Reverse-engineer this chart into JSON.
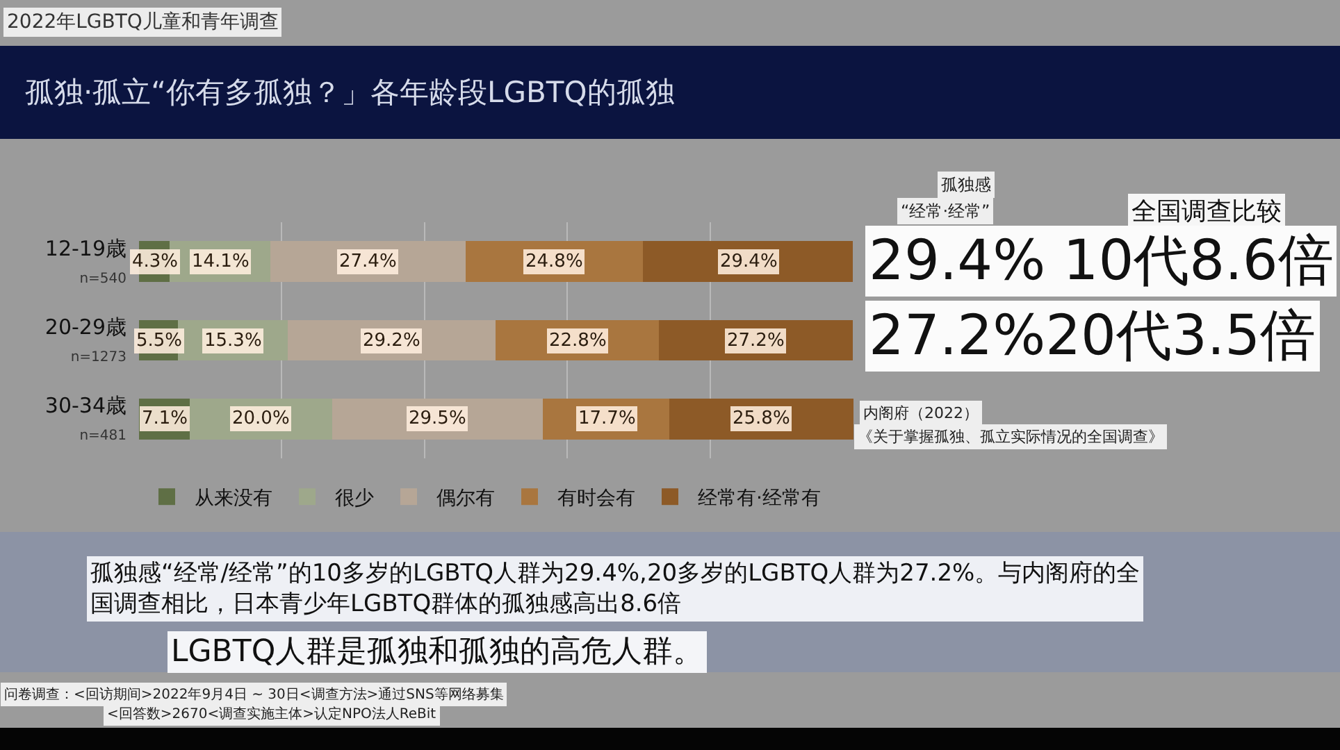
{
  "chart_data": {
    "type": "bar",
    "orientation": "horizontal",
    "stacked": true,
    "title": "孤独·孤立“你有多孤独？」各年龄段LGBTQ的孤独",
    "categories": [
      "12-19歳\nn=540",
      "20-29歳\nn=1273",
      "30-34歳\nn=481"
    ],
    "series": [
      {
        "name": "从来没有",
        "color": "#5f6f45",
        "values": [
          4.3,
          5.5,
          7.1
        ],
        "value_labels": [
          "4.3%",
          "5.5%",
          "7.1%"
        ]
      },
      {
        "name": "很少",
        "color": "#9ea88b",
        "values": [
          14.1,
          15.3,
          20.0
        ],
        "value_labels": [
          "14.1%",
          "15.3%",
          "20.0%"
        ]
      },
      {
        "name": "偶尔有",
        "color": "#b6a696",
        "values": [
          27.4,
          29.2,
          29.5
        ],
        "value_labels": [
          "27.4%",
          "29.2%",
          "29.5%"
        ]
      },
      {
        "name": "有时会有",
        "color": "#a9763f",
        "values": [
          24.8,
          22.8,
          17.7
        ],
        "value_labels": [
          "24.8%",
          "22.8%",
          "17.7%"
        ]
      },
      {
        "name": "经常有·经常有",
        "color": "#8d5a27",
        "values": [
          29.4,
          27.2,
          25.8
        ],
        "value_labels": [
          "29.4%",
          "27.2%",
          "25.8%"
        ]
      }
    ],
    "xlim": [
      0,
      100.1
    ],
    "grid": "x",
    "legend": "bottom",
    "tick_labels": "y",
    "annotations": [
      "2022年LGBTQ儿童和青年调查",
      "孤独感",
      "“经常·经常”",
      "全国调查比较",
      "29.4% 10代8.6倍",
      "27.2%20代3.5倍",
      "内阁府（2022）",
      "《关于掌握孤独、孤立实际情况的全国调查》",
      "孤独感“经常/经常”的10多岁的LGBTQ人群为29.4%,20多岁的LGBTQ人群为27.2%。与内阁府的全国调查相比，日本青少年LGBTQ群体的孤独感高出8.6倍",
      "LGBTQ人群是孤独和孤独的高危人群。",
      "问卷调查：<回访期间>2022年9月4日 ~ 30日<调查方法>通过SNS等网络募集",
      "<回答数>2670<调查实施主体>认定NPO法人ReBit"
    ]
  }
}
